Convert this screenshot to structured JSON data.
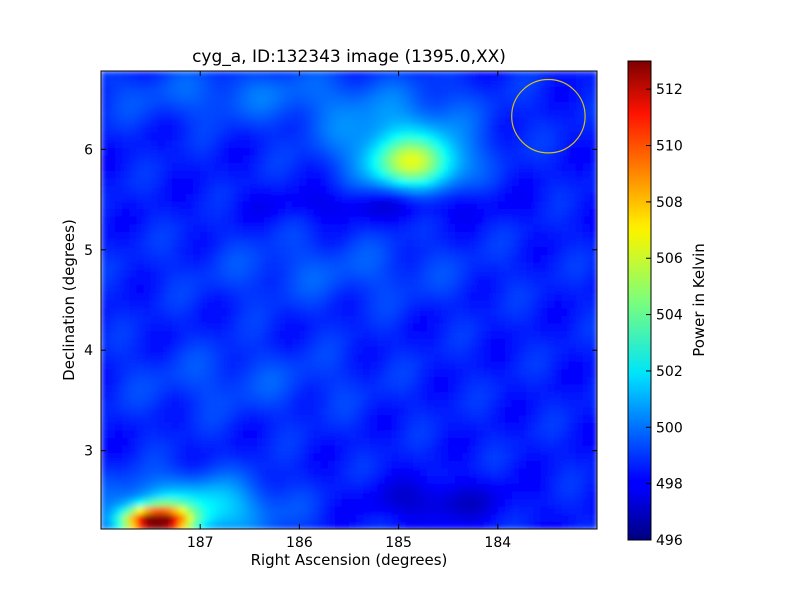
{
  "chart_data": {
    "type": "heatmap",
    "title": "cyg_a, ID:132343 image (1395.0,XX)",
    "xlabel": "Right Ascension (degrees)",
    "ylabel": "Declination (degrees)",
    "xlim": [
      188.0,
      183.0
    ],
    "ylim": [
      2.22,
      6.78
    ],
    "xticks": [
      187,
      186,
      185,
      184
    ],
    "yticks": [
      3,
      4,
      5,
      6
    ],
    "colorbar": {
      "label": "Power in Kelvin",
      "range": [
        496,
        513
      ],
      "ticks": [
        496,
        498,
        500,
        502,
        504,
        506,
        508,
        510,
        512
      ],
      "colormap": "jet"
    },
    "base_level": 498.6,
    "blobs": [
      {
        "ra": 184.85,
        "dec": 5.85,
        "peak": 504.8,
        "sra": 0.32,
        "sdec": 0.18
      },
      {
        "ra": 185.0,
        "dec": 6.15,
        "peak": 500.8,
        "sra": 0.55,
        "sdec": 0.25
      },
      {
        "ra": 187.45,
        "dec": 2.3,
        "peak": 512.2,
        "sra": 0.22,
        "sdec": 0.1
      },
      {
        "ra": 187.1,
        "dec": 2.42,
        "peak": 502.5,
        "sra": 0.55,
        "sdec": 0.22
      },
      {
        "ra": 186.4,
        "dec": 6.55,
        "peak": 499.8,
        "sra": 1.2,
        "sdec": 0.2
      },
      {
        "ra": 185.7,
        "dec": 4.8,
        "peak": 499.5,
        "sra": 1.0,
        "sdec": 0.25
      },
      {
        "ra": 186.6,
        "dec": 3.7,
        "peak": 499.4,
        "sra": 0.9,
        "sdec": 0.25
      },
      {
        "ra": 184.6,
        "dec": 2.5,
        "peak": 497.2,
        "sra": 0.5,
        "sdec": 0.15
      },
      {
        "ra": 185.2,
        "dec": 5.45,
        "peak": 497.6,
        "sra": 0.8,
        "sdec": 0.12
      }
    ],
    "beam_marker": {
      "ra": 183.49,
      "dec": 6.33,
      "radius_deg": 0.37,
      "color": "#d4c11a"
    }
  }
}
